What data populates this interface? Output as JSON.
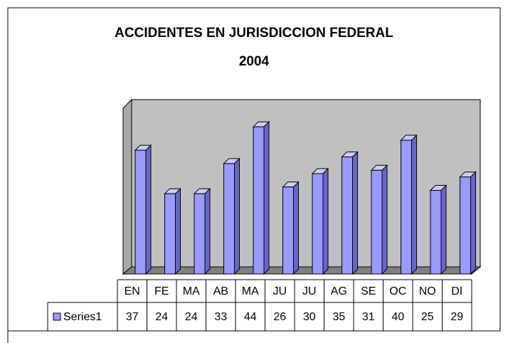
{
  "chart_data": {
    "type": "bar",
    "title_lines": [
      "ACCIDENTES EN JURISDICCION FEDERAL",
      "2004"
    ],
    "categories": [
      "EN",
      "FE",
      "MA",
      "AB",
      "MA",
      "JU",
      "JU",
      "AG",
      "SE",
      "OC",
      "NO",
      "DI"
    ],
    "series": [
      {
        "name": "Series1",
        "color": "#9999ff",
        "values": [
          37,
          24,
          24,
          33,
          44,
          26,
          30,
          35,
          31,
          40,
          25,
          29
        ]
      }
    ]
  }
}
